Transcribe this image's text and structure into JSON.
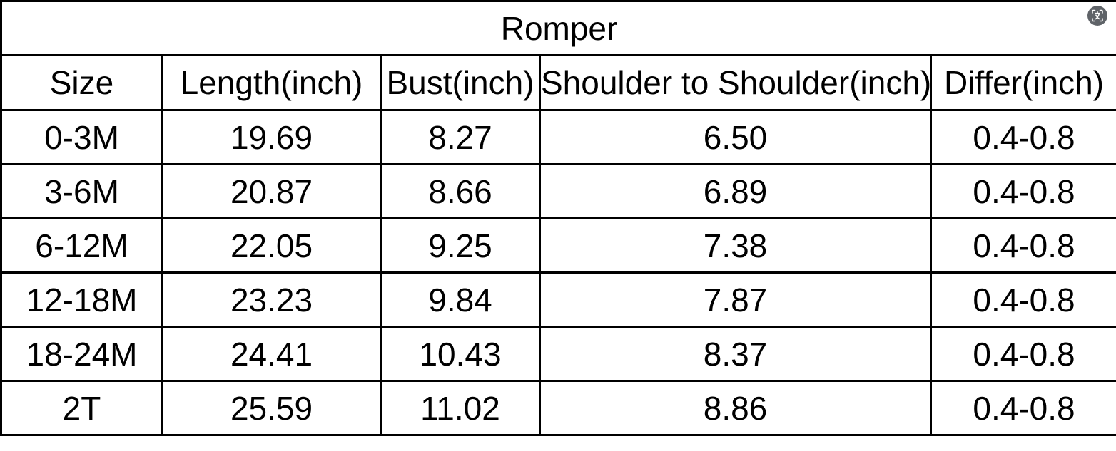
{
  "chart_data": {
    "type": "table",
    "title": "Romper",
    "columns": [
      "Size",
      "Length(inch)",
      "Bust(inch)",
      "Shoulder to Shoulder(inch)",
      "Differ(inch)"
    ],
    "rows": [
      [
        "0-3M",
        "19.69",
        "8.27",
        "6.50",
        "0.4-0.8"
      ],
      [
        "3-6M",
        "20.87",
        "8.66",
        "6.89",
        "0.4-0.8"
      ],
      [
        "6-12M",
        "22.05",
        "9.25",
        "7.38",
        "0.4-0.8"
      ],
      [
        "12-18M",
        "23.23",
        "9.84",
        "7.87",
        "0.4-0.8"
      ],
      [
        "18-24M",
        "24.41",
        "10.43",
        "8.37",
        "0.4-0.8"
      ],
      [
        "2T",
        "25.59",
        "11.02",
        "8.86",
        "0.4-0.8"
      ]
    ],
    "layout": {
      "grid": "all-borders",
      "title_position": "top-merged-row"
    }
  },
  "icons": {
    "translate_scan": "translate-scan-icon"
  },
  "colors": {
    "border": "#000000",
    "text": "#000000",
    "background": "#ffffff",
    "icon_circle": "#5f6368",
    "icon_glyph": "#ffffff"
  }
}
